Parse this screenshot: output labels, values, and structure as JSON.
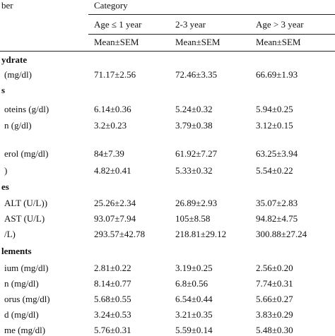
{
  "header": {
    "first_column": "ber",
    "category": "Category",
    "groups": [
      "Age ≤ 1 year",
      "2-3 year",
      "Age > 3 year"
    ],
    "stats": [
      "Mean±SEM",
      "Mean±SEM",
      "Mean±SEM"
    ]
  },
  "rows": [
    {
      "label": "ydrate",
      "section": true
    },
    {
      "label": "(mg/dl)",
      "values": [
        "71.17±2.56",
        "72.46±3.35",
        "66.69±1.93"
      ]
    },
    {
      "label": "s",
      "section": true
    },
    {
      "label": "oteins (g/dl)",
      "values": [
        "6.14±0.36",
        "5.24±0.32",
        "5.94±0.25"
      ]
    },
    {
      "label": "n (g/dl)",
      "values": [
        "3.2±0.23",
        "3.79±0.38",
        "3.12±0.15"
      ]
    },
    {
      "label": "erol (mg/dl)",
      "values": [
        "84±7.39",
        "61.92±7.27",
        "63.25±3.94"
      ]
    },
    {
      "label": ")",
      "values": [
        "4.82±0.41",
        "5.33±0.32",
        "5.54±0.22"
      ]
    },
    {
      "label": "es",
      "section": true
    },
    {
      "label": "ALT (U/L))",
      "values": [
        "25.26±2.34",
        "26.89±2.93",
        "35.07±2.83"
      ]
    },
    {
      "label": "AST (U/L)",
      "values": [
        "93.07±7.94",
        "105±8.58",
        "94.82±4.75"
      ]
    },
    {
      "label": "/L)",
      "values": [
        "293.57±42.78",
        "218.81±29.12",
        "300.88±27.24"
      ]
    },
    {
      "label": "lements",
      "section": true
    },
    {
      "label": "ium (mg/dl)",
      "values": [
        "2.81±0.22",
        "3.19±0.25",
        "2.56±0.20"
      ]
    },
    {
      "label": "n (mg/dl)",
      "values": [
        "8.14±0.77",
        "6.8±0.56",
        "7.74±0.31"
      ]
    },
    {
      "label": "orus (mg/dl)",
      "values": [
        "5.68±0.55",
        "6.54±0.44",
        "5.66±0.27"
      ]
    },
    {
      "label": "d (mg/dl)",
      "values": [
        "3.24±0.53",
        "3.21±0.35",
        "3.83±0.29"
      ]
    },
    {
      "label": "me (mg/dl)",
      "values": [
        "5.76±0.31",
        "5.59±0.14",
        "5.48±0.30"
      ]
    }
  ]
}
